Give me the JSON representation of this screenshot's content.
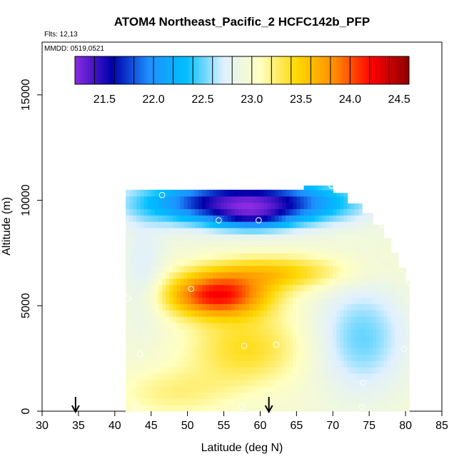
{
  "chart_data": {
    "type": "heatmap",
    "title": "ATOM4 Northeast_Pacific_2 HCFC142b_PFP",
    "flights_label": "Flts: 12,13",
    "mmdd_label": "MMDD: 0519,0521",
    "xlabel": "Latitude (deg N)",
    "ylabel": "Altitude (m)",
    "xlim": [
      30,
      85
    ],
    "ylim": [
      0,
      17500
    ],
    "x_ticks": [
      "30",
      "35",
      "40",
      "45",
      "50",
      "55",
      "60",
      "65",
      "70",
      "75",
      "80",
      "85"
    ],
    "y_ticks": [
      "0",
      "5000",
      "10000",
      "15000"
    ],
    "colorbar": {
      "range": [
        21.2,
        24.6
      ],
      "ticks": [
        "21.5",
        "22.0",
        "22.5",
        "23.0",
        "23.5",
        "24.0",
        "24.5"
      ],
      "colors": [
        "#8a2be2",
        "#0000aa",
        "#1e90ff",
        "#00bfff",
        "#e0f0ff",
        "#ffffc0",
        "#ffd700",
        "#ff8c00",
        "#ff0000",
        "#8b0000"
      ]
    },
    "sample_points": [
      {
        "lat": 46.5,
        "alt": 10250
      },
      {
        "lat": 54.3,
        "alt": 9050
      },
      {
        "lat": 59.8,
        "alt": 9050
      },
      {
        "lat": 69.8,
        "alt": 10700
      },
      {
        "lat": 76.8,
        "alt": 8850
      },
      {
        "lat": 50.5,
        "alt": 5800
      },
      {
        "lat": 41.8,
        "alt": 5350
      },
      {
        "lat": 57.8,
        "alt": 3100
      },
      {
        "lat": 62.2,
        "alt": 3150
      },
      {
        "lat": 43.5,
        "alt": 2700
      },
      {
        "lat": 79.8,
        "alt": 2950
      },
      {
        "lat": 74.2,
        "alt": 1350
      },
      {
        "lat": 43.0,
        "alt": 200
      },
      {
        "lat": 57.5,
        "alt": 200
      },
      {
        "lat": 74.0,
        "alt": 200
      },
      {
        "lat": 80.5,
        "alt": 6100
      }
    ],
    "arrow_latitudes": [
      34.6,
      61.2
    ]
  }
}
